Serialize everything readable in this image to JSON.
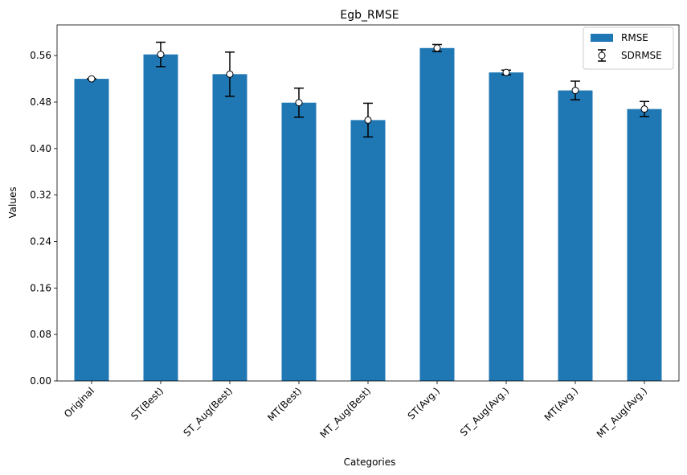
{
  "chart_data": {
    "type": "bar",
    "title": "Egb_RMSE",
    "xlabel": "Categories",
    "ylabel": "Values",
    "ylim": [
      0,
      0.6128
    ],
    "yticks": [
      0.0,
      0.08,
      0.16,
      0.24,
      0.32,
      0.4,
      0.48,
      0.56
    ],
    "ytick_labels": [
      "0.00",
      "0.08",
      "0.16",
      "0.24",
      "0.32",
      "0.40",
      "0.48",
      "0.56"
    ],
    "categories": [
      "Original",
      "ST(Best)",
      "ST_Aug(Best)",
      "MT(Best)",
      "MT_Aug(Best)",
      "ST(Avg.)",
      "ST_Aug(Avg.)",
      "MT(Avg.)",
      "MT_Aug(Avg.)"
    ],
    "series": [
      {
        "name": "RMSE",
        "type": "bar",
        "color": "#1f77b4",
        "values": [
          0.52,
          0.562,
          0.528,
          0.479,
          0.449,
          0.573,
          0.531,
          0.5,
          0.468
        ]
      },
      {
        "name": "SDRMSE",
        "type": "errorbar",
        "color": "#000000",
        "marker": "open-circle",
        "errors": [
          0.0,
          0.021,
          0.038,
          0.025,
          0.029,
          0.006,
          0.004,
          0.016,
          0.013
        ]
      }
    ],
    "legend": {
      "position": "top-right"
    }
  }
}
